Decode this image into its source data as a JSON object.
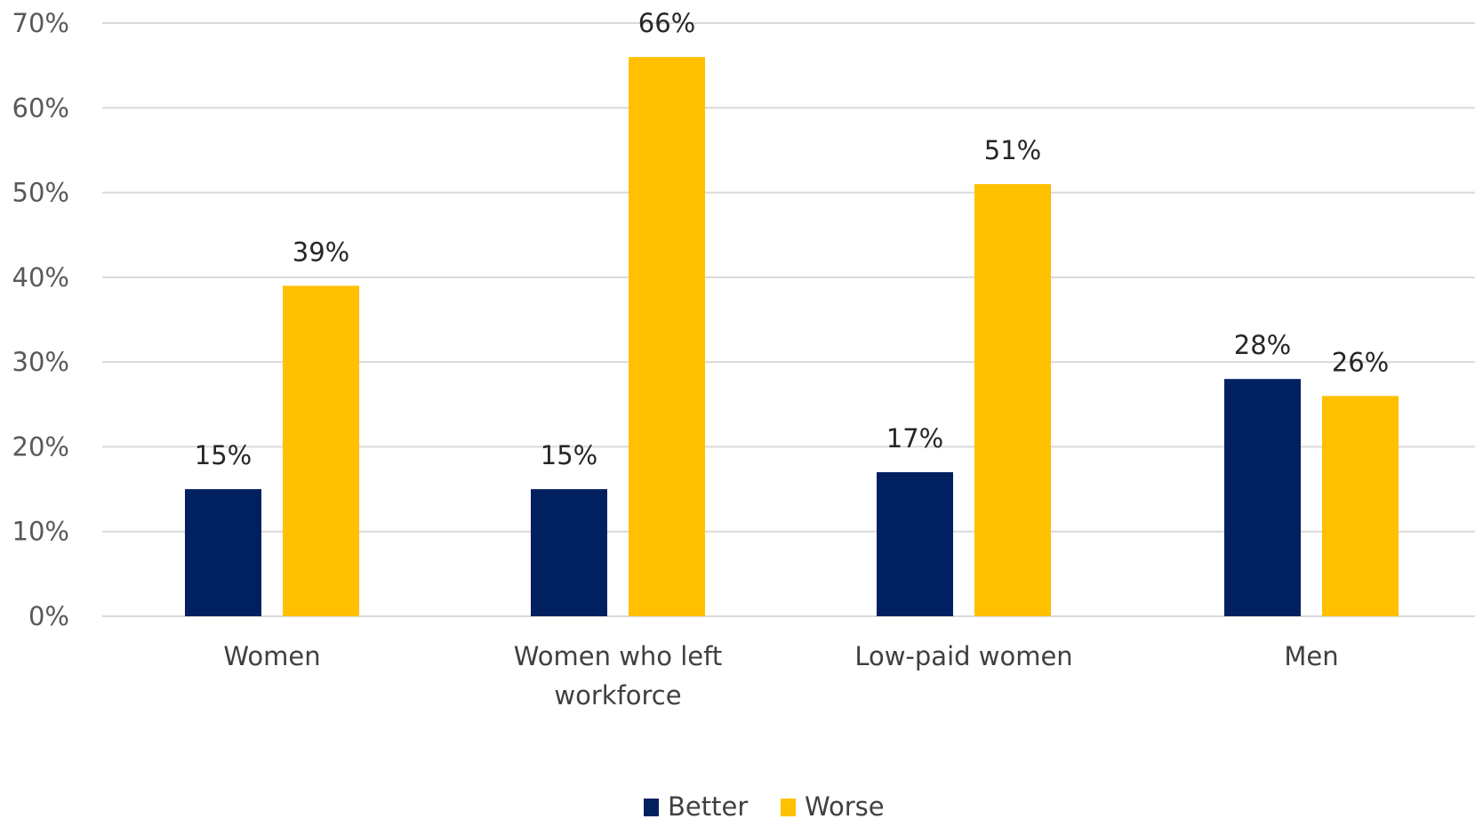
{
  "chart_data": {
    "type": "bar",
    "title": "",
    "xlabel": "",
    "ylabel": "",
    "ylim": [
      0,
      70
    ],
    "y_ticks": [
      0,
      10,
      20,
      30,
      40,
      50,
      60,
      70
    ],
    "y_tick_suffix": "%",
    "grid": true,
    "legend_position": "bottom",
    "categories": [
      [
        "Women"
      ],
      [
        "Women who left",
        "workforce"
      ],
      [
        "Low-paid women"
      ],
      [
        "Men"
      ]
    ],
    "series": [
      {
        "name": "Better",
        "color": "#002060",
        "values": [
          15,
          15,
          17,
          28
        ],
        "labels": [
          "15%",
          "15%",
          "17%",
          "28%"
        ]
      },
      {
        "name": "Worse",
        "color": "#ffc000",
        "values": [
          39,
          66,
          51,
          26
        ],
        "labels": [
          "39%",
          "66%",
          "51%",
          "26%"
        ]
      }
    ]
  }
}
